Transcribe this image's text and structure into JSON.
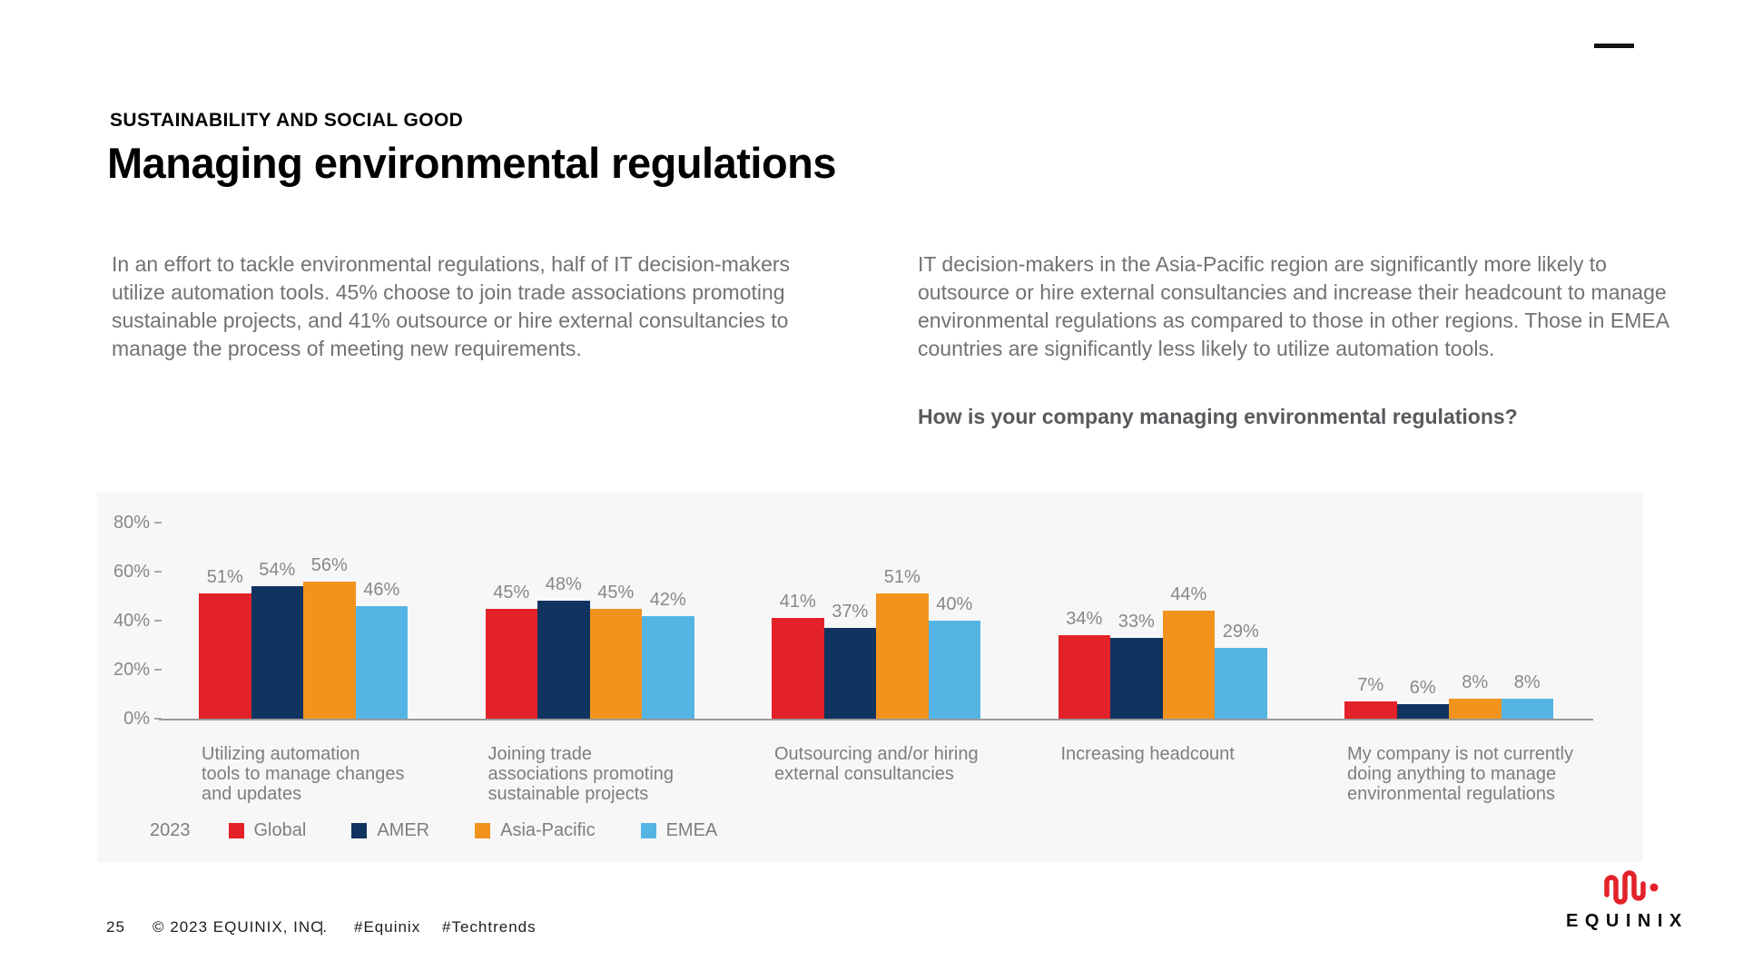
{
  "menu": {
    "hamburger_icon": "menu"
  },
  "header": {
    "eyebrow": "SUSTAINABILITY AND SOCIAL GOOD",
    "title": "Managing environmental regulations"
  },
  "intro": {
    "left_paragraph": "In an effort to tackle environmental regulations, half of IT decision-makers utilize automation tools. 45% choose to join trade associations promoting sustainable projects, and 41% outsource or hire external consultancies to manage the process of meeting new requirements.",
    "right_paragraph": "IT decision-makers in the Asia-Pacific region are significantly more likely to outsource or hire external consultancies and increase their headcount to manage environmental regulations as compared to those in other regions. Those in EMEA countries are significantly less likely to utilize automation tools.",
    "question": "How is your company managing environmental regulations?"
  },
  "chart_data": {
    "type": "bar",
    "title": "How is your company managing environmental regulations?",
    "categories": [
      "Utilizing automation\ntools to manage changes\nand updates",
      "Joining trade\nassociations promoting\nsustainable projects",
      "Outsourcing and/or hiring\nexternal consultancies",
      "Increasing headcount",
      "My company is not currently\ndoing anything to manage\nenvironmental regulations"
    ],
    "series": [
      {
        "name": "Global",
        "color": "#e32128",
        "values": [
          51,
          45,
          41,
          34,
          7
        ]
      },
      {
        "name": "AMER",
        "color": "#103360",
        "values": [
          54,
          48,
          37,
          33,
          6
        ]
      },
      {
        "name": "Asia-Pacific",
        "color": "#f2931e",
        "values": [
          56,
          45,
          51,
          44,
          8
        ]
      },
      {
        "name": "EMEA",
        "color": "#54b5e4",
        "values": [
          46,
          42,
          40,
          29,
          8
        ]
      }
    ],
    "year_label": "2023",
    "value_suffix": "%",
    "y_ticks": [
      "80%",
      "60%",
      "40%",
      "20%",
      "0%"
    ],
    "ylim": [
      0,
      90
    ],
    "grid": false,
    "legend_position": "bottom-left",
    "plot_background": "#f7f7f8"
  },
  "footer": {
    "page_number": "25",
    "copyright": "© 2023 EQUINIX, INC.",
    "separator": "|",
    "hashtag1": "#Equinix",
    "hashtag2": "#Techtrends"
  },
  "logo": {
    "wordmark": "EQUINIX",
    "mark_color": "#e3222a"
  }
}
